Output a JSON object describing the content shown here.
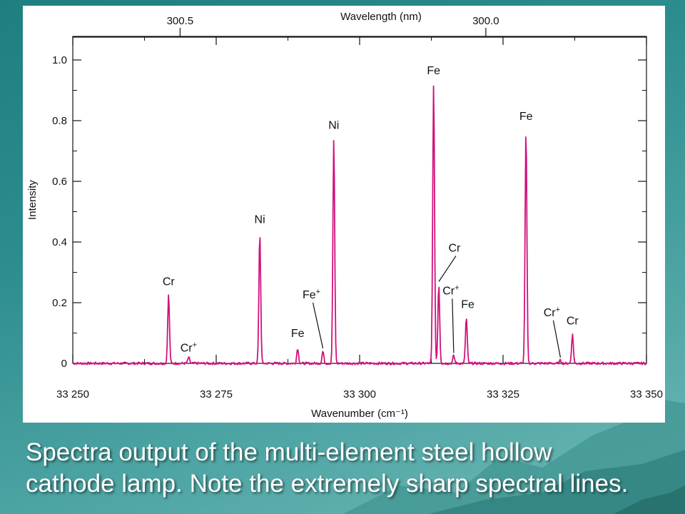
{
  "slide": {
    "caption_line1": "Spectra output of the multi-element steel hollow",
    "caption_line2": "cathode lamp.  Note the extremely sharp spectral lines.",
    "background_color": "#2d8d8e",
    "caption_color": "#ffffff"
  },
  "chart_data": {
    "type": "line",
    "title": "",
    "xlabel": "Wavenumber (cm⁻¹)",
    "ylabel": "Intensity",
    "top_axis_label": "Wavelength (nm)",
    "xlim": [
      33250,
      33350
    ],
    "ylim": [
      0,
      1.0
    ],
    "x_ticks": [
      33250,
      33275,
      33300,
      33325,
      33350
    ],
    "x_tick_labels": [
      "33 250",
      "33 275",
      "33 300",
      "33 325",
      "33 350"
    ],
    "y_ticks": [
      0,
      0.2,
      0.4,
      0.6,
      0.8,
      1.0
    ],
    "y_tick_labels": [
      "0",
      "0.2",
      "0.4",
      "0.6",
      "0.8",
      "1.0"
    ],
    "top_ticks": [
      {
        "label": "300.5",
        "x": 33268.7
      },
      {
        "label": "300.0",
        "x": 33322.0
      }
    ],
    "grid": false,
    "line_color": "#d0137c",
    "baseline": 0.0,
    "peaks": [
      {
        "x": 33266.7,
        "y": 0.225,
        "label": "Cr"
      },
      {
        "x": 33270.2,
        "y": 0.02,
        "label": "Cr",
        "sup": "+"
      },
      {
        "x": 33282.6,
        "y": 0.43,
        "label": "Ni"
      },
      {
        "x": 33289.2,
        "y": 0.05,
        "label": "Fe"
      },
      {
        "x": 33293.6,
        "y": 0.04,
        "label": "Fe",
        "sup": "+"
      },
      {
        "x": 33295.5,
        "y": 0.74,
        "label": "Ni"
      },
      {
        "x": 33312.9,
        "y": 0.925,
        "label": "Fe"
      },
      {
        "x": 33313.8,
        "y": 0.26,
        "label": "Cr"
      },
      {
        "x": 33316.4,
        "y": 0.025,
        "label": "Cr",
        "sup": "+"
      },
      {
        "x": 33318.6,
        "y": 0.15,
        "label": "Fe"
      },
      {
        "x": 33329.0,
        "y": 0.77,
        "label": "Fe"
      },
      {
        "x": 33335.0,
        "y": 0.01,
        "label": "Cr",
        "sup": "+"
      },
      {
        "x": 33337.1,
        "y": 0.095,
        "label": "Cr"
      }
    ]
  }
}
